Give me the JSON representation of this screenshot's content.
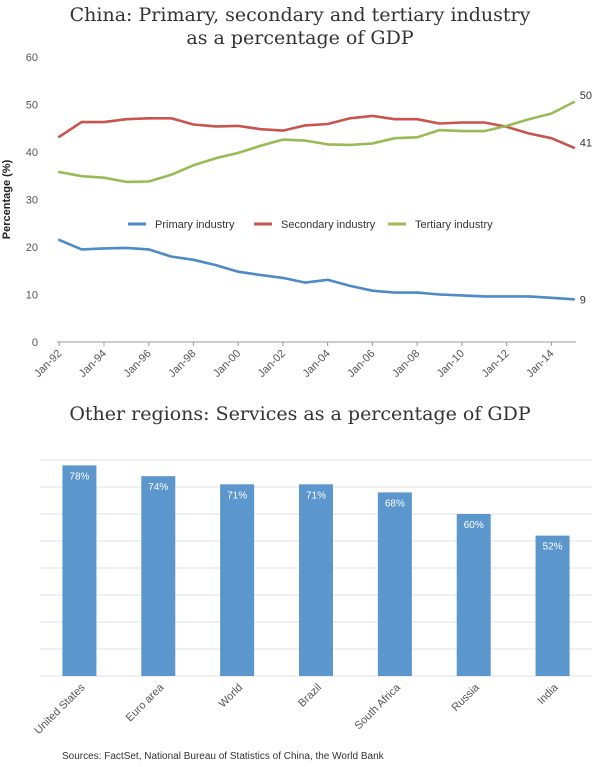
{
  "source": "Sources: FactSet, National Bureau of Statistics of China, the World Bank",
  "colors": {
    "primary": "#4d8ac6",
    "secondary": "#c9534f",
    "tertiary": "#99bb55",
    "bar": "#5b96cc"
  },
  "chart_data": [
    {
      "type": "line",
      "title_line1": "China: Primary, secondary and tertiary industry",
      "title_line2": "as a percentage of GDP",
      "ylabel": "Percentage (%)",
      "ylim": [
        0,
        60
      ],
      "yticks": [
        0,
        10,
        20,
        30,
        40,
        50,
        60
      ],
      "xticks": [
        "Jan-92",
        "Jan-94",
        "Jan-96",
        "Jan-98",
        "Jan-00",
        "Jan-02",
        "Jan-04",
        "Jan-06",
        "Jan-08",
        "Jan-10",
        "Jan-12",
        "Jan-14"
      ],
      "x": [
        1992,
        1993,
        1994,
        1995,
        1996,
        1997,
        1998,
        1999,
        2000,
        2001,
        2002,
        2003,
        2004,
        2005,
        2006,
        2007,
        2008,
        2009,
        2010,
        2011,
        2012,
        2013,
        2014,
        2015
      ],
      "legend_position": "center",
      "grid": false,
      "series": [
        {
          "name": "Primary industry",
          "color": "#4d8ac6",
          "end_label": "9",
          "values": [
            21.5,
            19.5,
            19.7,
            19.8,
            19.5,
            18,
            17.3,
            16.2,
            14.8,
            14.1,
            13.5,
            12.5,
            13.1,
            11.8,
            10.8,
            10.4,
            10.4,
            10.0,
            9.8,
            9.6,
            9.6,
            9.6,
            9.3,
            9.0
          ]
        },
        {
          "name": "Secondary industry",
          "color": "#c9534f",
          "end_label": "41",
          "values": [
            43.2,
            46.3,
            46.3,
            46.9,
            47.1,
            47.1,
            45.8,
            45.4,
            45.5,
            44.8,
            44.5,
            45.6,
            45.9,
            47.1,
            47.6,
            46.9,
            46.9,
            46.0,
            46.2,
            46.2,
            45.3,
            43.9,
            42.9,
            40.9
          ]
        },
        {
          "name": "Tertiary industry",
          "color": "#99bb55",
          "end_label": "50",
          "values": [
            35.8,
            34.9,
            34.6,
            33.7,
            33.8,
            35.2,
            37.2,
            38.7,
            39.8,
            41.3,
            42.6,
            42.4,
            41.6,
            41.5,
            41.8,
            42.9,
            43.1,
            44.6,
            44.4,
            44.4,
            45.5,
            46.9,
            48.1,
            50.5
          ]
        }
      ]
    },
    {
      "type": "bar",
      "title": "Other regions: Services as a percentage of GDP",
      "ylim": [
        0,
        80
      ],
      "categories": [
        "United States",
        "Euro area",
        "World",
        "Brazil",
        "South Africa",
        "Russia",
        "India"
      ],
      "values": [
        78,
        74,
        71,
        71,
        68,
        60,
        52
      ],
      "value_labels": [
        "78%",
        "74%",
        "71%",
        "71%",
        "68%",
        "60%",
        "52%"
      ],
      "grid": true
    }
  ]
}
